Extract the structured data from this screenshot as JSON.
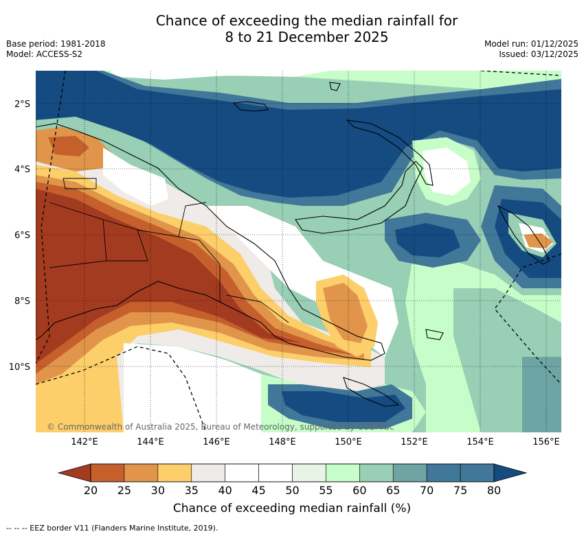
{
  "header": {
    "title_line1": "Chance of exceeding the median rainfall for",
    "title_line2": "8 to 21 December 2025",
    "base_period": "Base period: 1981-2018",
    "model": "Model: ACCESS-S2",
    "model_run": "Model run: 01/12/2025",
    "issued": "Issued: 03/12/2025"
  },
  "map": {
    "lat_labels": [
      "2°S",
      "4°S",
      "6°S",
      "8°S",
      "10°S"
    ],
    "lon_labels": [
      "142°E",
      "144°E",
      "146°E",
      "148°E",
      "150°E",
      "152°E",
      "154°E",
      "156°E"
    ],
    "copyright": "© Commonwealth of Australia 2025, Bureau of Meteorology, supported by COSPPac"
  },
  "colorbar": {
    "ticks": [
      "20",
      "25",
      "30",
      "35",
      "40",
      "45",
      "50",
      "55",
      "60",
      "65",
      "70",
      "75",
      "80"
    ],
    "colors": [
      "#a33b20",
      "#c5602d",
      "#e0954a",
      "#fdcf6a",
      "#efebe8",
      "#ffffff",
      "#ffffff",
      "#e8f5e6",
      "#c6fdc8",
      "#98cfb5",
      "#6ea4a4",
      "#417798",
      "#154b80"
    ],
    "label": "Chance of exceeding median rainfall (%)"
  },
  "footer": {
    "legend": "--  --  -- EEZ border V11 (Flanders Marine Institute, 2019)."
  }
}
